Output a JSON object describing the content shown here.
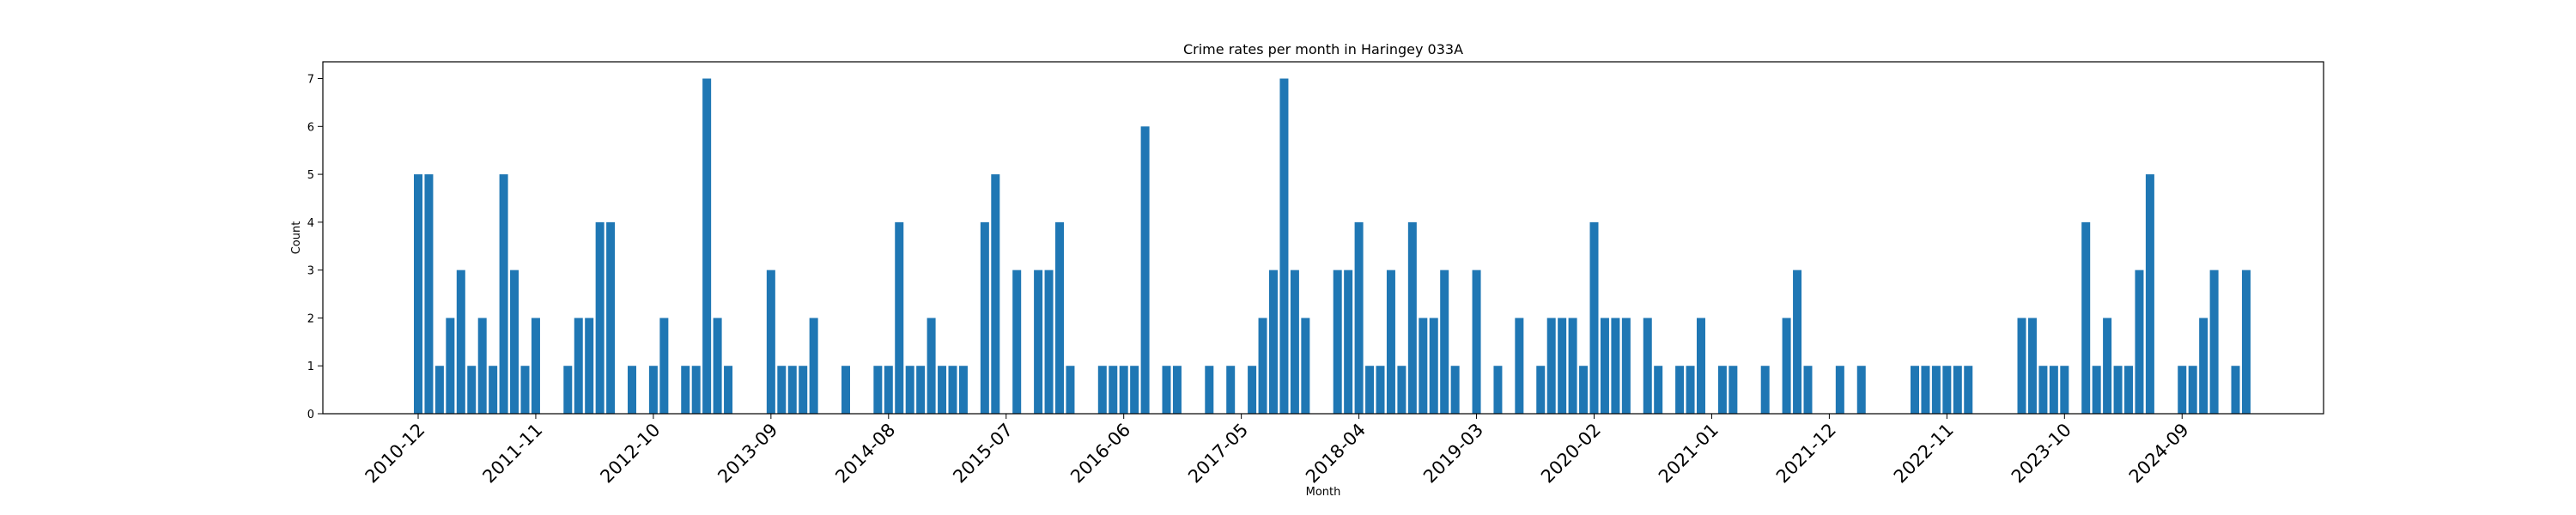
{
  "chart_data": {
    "type": "bar",
    "title": "Crime rates per month in Haringey 033A",
    "xlabel": "Month",
    "ylabel": "Count",
    "ylim": [
      0,
      7.35
    ],
    "yticks": [
      0,
      1,
      2,
      3,
      4,
      5,
      6,
      7
    ],
    "xtick_labels": [
      "2010-12",
      "2011-11",
      "2012-10",
      "2013-09",
      "2014-08",
      "2015-07",
      "2016-06",
      "2017-05",
      "2018-04",
      "2019-03",
      "2020-02",
      "2021-01",
      "2021-12",
      "2022-11",
      "2023-10",
      "2024-09"
    ],
    "color": "#1f77b4",
    "grid": false,
    "start_month": "2010-12",
    "values": [
      5,
      5,
      1,
      2,
      3,
      1,
      2,
      1,
      5,
      3,
      1,
      2,
      0,
      0,
      1,
      2,
      2,
      4,
      4,
      0,
      1,
      0,
      1,
      2,
      0,
      1,
      1,
      7,
      2,
      1,
      0,
      0,
      0,
      3,
      1,
      1,
      1,
      2,
      0,
      0,
      1,
      0,
      0,
      1,
      1,
      4,
      1,
      1,
      2,
      1,
      1,
      1,
      0,
      4,
      5,
      0,
      3,
      0,
      3,
      3,
      4,
      1,
      0,
      0,
      1,
      1,
      1,
      1,
      6,
      0,
      1,
      1,
      0,
      0,
      1,
      0,
      1,
      0,
      1,
      2,
      3,
      7,
      3,
      2,
      0,
      0,
      3,
      3,
      4,
      1,
      1,
      3,
      1,
      4,
      2,
      2,
      3,
      1,
      0,
      3,
      0,
      1,
      0,
      2,
      0,
      1,
      2,
      2,
      2,
      1,
      4,
      2,
      2,
      2,
      0,
      2,
      1,
      0,
      1,
      1,
      2,
      0,
      1,
      1,
      0,
      0,
      1,
      0,
      2,
      3,
      1,
      0,
      0,
      1,
      0,
      1,
      0,
      0,
      0,
      0,
      1,
      1,
      1,
      1,
      1,
      1,
      0,
      0,
      0,
      0,
      2,
      2,
      1,
      1,
      1,
      0,
      4,
      1,
      2,
      1,
      1,
      3,
      5,
      0,
      0,
      1,
      1,
      2,
      3,
      0,
      1,
      3
    ]
  }
}
